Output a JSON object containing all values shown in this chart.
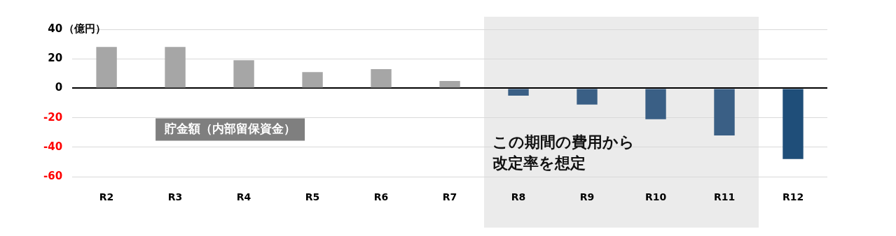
{
  "chart_data": {
    "type": "bar",
    "ylabel": "（億円）",
    "categories": [
      "R2",
      "R3",
      "R4",
      "R5",
      "R6",
      "R7",
      "R8",
      "R9",
      "R10",
      "R11",
      "R12"
    ],
    "values": [
      28,
      28,
      19,
      11,
      13,
      5,
      -5,
      -11,
      -21,
      -32,
      -48
    ],
    "colors": [
      "#a6a6a6",
      "#a6a6a6",
      "#a6a6a6",
      "#a6a6a6",
      "#a6a6a6",
      "#a6a6a6",
      "#3a5f85",
      "#3a5f85",
      "#3a5f85",
      "#3a5f85",
      "#1f4e79"
    ],
    "ylim": [
      -60,
      40
    ],
    "yticks": [
      -60,
      -40,
      -20,
      0,
      20,
      40
    ],
    "grid": "y",
    "legend": false,
    "bands": [
      {
        "axis": "x",
        "from": "R8",
        "to": "R11",
        "label": "この期間の費用から改定率を想定",
        "color": "#ebebeb"
      }
    ],
    "annotations": [
      "貯金額（内部留保資金）"
    ]
  }
}
